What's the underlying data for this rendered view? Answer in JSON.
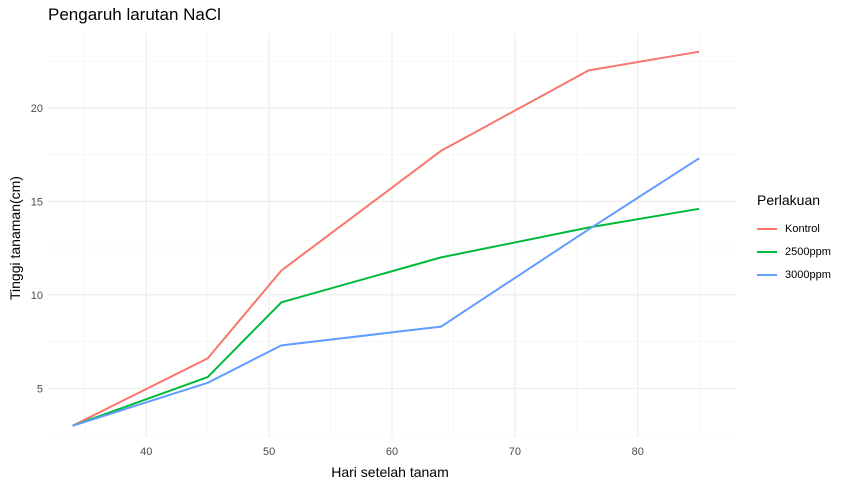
{
  "chart_data": {
    "type": "line",
    "title": "Pengaruh larutan NaCl",
    "xlabel": "Hari setelah tanam",
    "ylabel": "Tinggi tanaman(cm)",
    "xlim": [
      32,
      88
    ],
    "ylim": [
      2.4,
      24
    ],
    "xticks": [
      40,
      50,
      60,
      70,
      80
    ],
    "yticks": [
      5,
      10,
      15,
      20
    ],
    "grid": true,
    "legend": {
      "title": "Perlakuan",
      "position": "right"
    },
    "series": [
      {
        "name": "Kontrol",
        "color": "#F8766D",
        "x": [
          34,
          45,
          51,
          64,
          76,
          85
        ],
        "y": [
          3.0,
          6.6,
          11.3,
          17.7,
          22.0,
          23.0
        ]
      },
      {
        "name": "2500ppm",
        "color": "#00BA38",
        "x": [
          34,
          45,
          51,
          64,
          76,
          85
        ],
        "y": [
          3.0,
          5.6,
          9.6,
          12.0,
          13.6,
          14.6
        ]
      },
      {
        "name": "3000ppm",
        "color": "#619CFF",
        "x": [
          34,
          45,
          51,
          64,
          76,
          85
        ],
        "y": [
          3.0,
          5.3,
          7.3,
          8.3,
          13.5,
          17.3
        ]
      }
    ]
  }
}
